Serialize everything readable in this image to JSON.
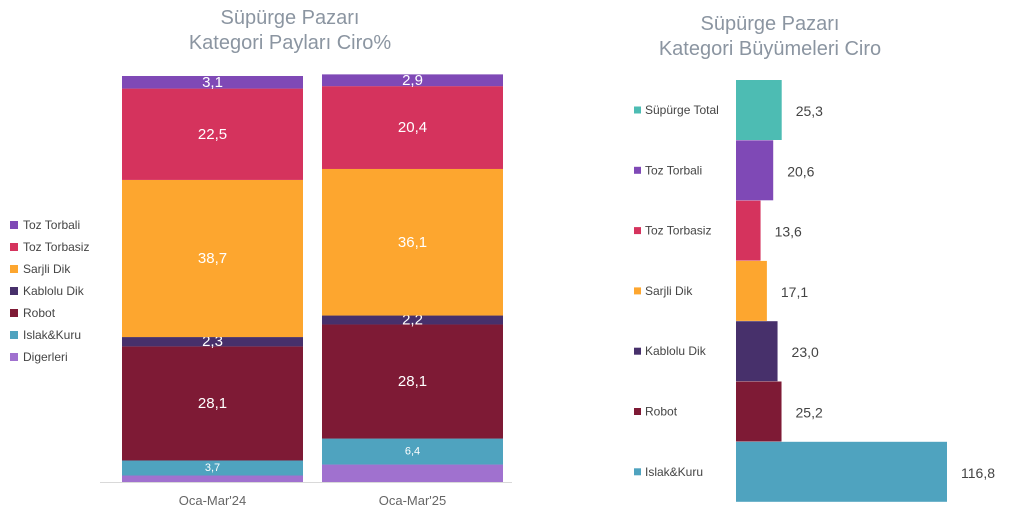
{
  "chart_data": [
    {
      "type": "bar",
      "stacked": true,
      "title": "Süpürge Pazarı",
      "subtitle": "Kategori Payları Ciro%",
      "categories": [
        "Oca-Mar'24",
        "Oca-Mar'25"
      ],
      "series": [
        {
          "name": "Digerleri",
          "color": "#a071cf",
          "values": [
            1.6,
            4.3
          ]
        },
        {
          "name": "Islak&Kuru",
          "color": "#4fa3bf",
          "values": [
            3.7,
            6.4
          ]
        },
        {
          "name": "Robot",
          "color": "#7e1a35",
          "values": [
            28.1,
            28.1
          ]
        },
        {
          "name": "Kablolu Dik",
          "color": "#47306b",
          "values": [
            2.3,
            2.2
          ]
        },
        {
          "name": "Sarjli Dik",
          "color": "#fda62f",
          "values": [
            38.7,
            36.1
          ]
        },
        {
          "name": "Toz Torbasiz",
          "color": "#d5335d",
          "values": [
            22.5,
            20.4
          ]
        },
        {
          "name": "Toz Torbali",
          "color": "#7f49b6",
          "values": [
            3.1,
            2.9
          ]
        }
      ],
      "data_labels": [
        {
          "series": "Islak&Kuru",
          "labels": [
            "3,7",
            "6,4"
          ]
        },
        {
          "series": "Robot",
          "labels": [
            "28,1",
            "28,1"
          ]
        },
        {
          "series": "Kablolu Dik",
          "labels": [
            "2,3",
            "2,2"
          ]
        },
        {
          "series": "Sarjli Dik",
          "labels": [
            "38,7",
            "36,1"
          ]
        },
        {
          "series": "Toz Torbasiz",
          "labels": [
            "22,5",
            "20,4"
          ]
        },
        {
          "series": "Toz Torbali",
          "labels": [
            "3,1",
            "2,9"
          ]
        }
      ],
      "legend": {
        "position": "left",
        "items": [
          {
            "label": "Toz Torbali",
            "color": "#7f49b6"
          },
          {
            "label": "Toz Torbasiz",
            "color": "#d5335d"
          },
          {
            "label": "Sarjli Dik",
            "color": "#fda62f"
          },
          {
            "label": "Kablolu Dik",
            "color": "#47306b"
          },
          {
            "label": "Robot",
            "color": "#7e1a35"
          },
          {
            "label": "Islak&Kuru",
            "color": "#4fa3bf"
          },
          {
            "label": "Digerleri",
            "color": "#a071cf"
          }
        ]
      },
      "ylim": [
        0,
        100
      ],
      "grid": false
    },
    {
      "type": "bar",
      "orientation": "horizontal",
      "title": "Süpürge Pazarı",
      "subtitle": "Kategori Büyümeleri Ciro",
      "categories": [
        "Süpürge Total",
        "Toz Torbali",
        "Toz Torbasiz",
        "Sarjli Dik",
        "Kablolu Dik",
        "Robot",
        "Islak&Kuru"
      ],
      "values": [
        25.3,
        20.6,
        13.6,
        17.1,
        23.0,
        25.2,
        116.8
      ],
      "value_labels": [
        "25,3",
        "20,6",
        "13,6",
        "17,1",
        "23,0",
        "25,2",
        "116,8"
      ],
      "colors": [
        "#4dbcb3",
        "#7f49b6",
        "#d5335d",
        "#fda62f",
        "#47306b",
        "#7e1a35",
        "#4fa3bf"
      ],
      "grid": false
    }
  ]
}
